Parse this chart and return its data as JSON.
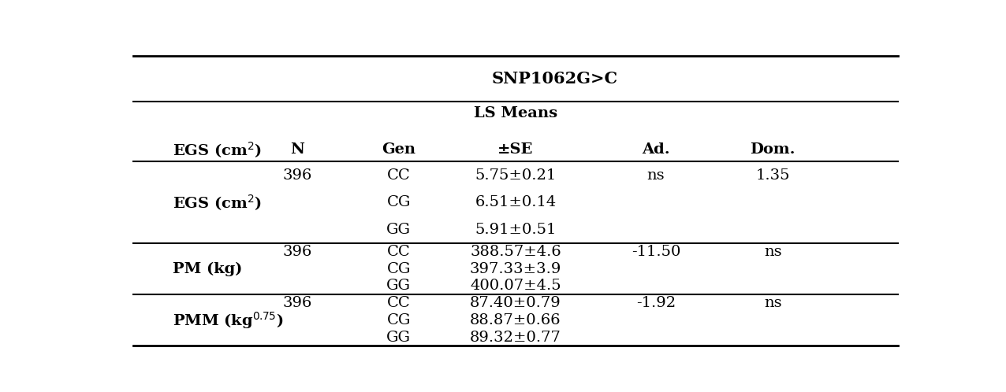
{
  "title": "SNP1062G>C",
  "ls_means_label": "LS Means",
  "pm_se_label": "±SE",
  "col_headers": [
    "EGS (cm²)",
    "N",
    "Gen",
    "±SE",
    "Ad.",
    "Dom."
  ],
  "rows": [
    {
      "trait": "EGS (cm$^2$)",
      "n": "396",
      "genotypes": [
        "CC",
        "CG",
        "GG"
      ],
      "ls_means": [
        "5.75±0.21",
        "6.51±0.14",
        "5.91±0.51"
      ],
      "ad": "ns",
      "dom": "1.35"
    },
    {
      "trait": "PM (kg)",
      "n": "396",
      "genotypes": [
        "CC",
        "CG",
        "GG"
      ],
      "ls_means": [
        "388.57±4.6",
        "397.33±3.9",
        "400.07±4.5"
      ],
      "ad": "-11.50",
      "dom": "ns"
    },
    {
      "trait": "PMM (kg$^{0.75}$)",
      "n": "396",
      "genotypes": [
        "CC",
        "CG",
        "GG"
      ],
      "ls_means": [
        "87.40±0.79",
        "88.87±0.66",
        "89.32±0.77"
      ],
      "ad": "-1.92",
      "dom": "ns"
    }
  ],
  "font_size": 14,
  "background": "#ffffff"
}
